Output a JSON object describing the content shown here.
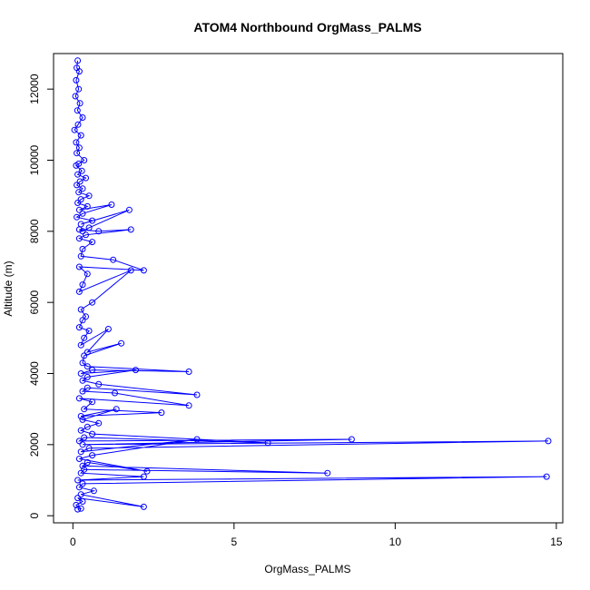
{
  "chart_data": {
    "type": "line",
    "title": "ATOM4 Northbound OrgMass_PALMS",
    "xlabel": "OrgMass_PALMS",
    "ylabel": "Altitude (m)",
    "xlim": [
      -0.6,
      15.2
    ],
    "ylim": [
      -200,
      13000
    ],
    "xticks": [
      0,
      5,
      10,
      15
    ],
    "yticks": [
      0,
      2000,
      4000,
      6000,
      8000,
      10000,
      12000
    ],
    "grid": false,
    "legend": "none",
    "markers": "open-circle",
    "color": "#0000ff",
    "series": [
      {
        "x": [
          0.15,
          0.12,
          0.2,
          0.1,
          0.18,
          0.08,
          0.22,
          0.14,
          0.3,
          0.16,
          0.05,
          0.25,
          0.1,
          0.2,
          0.12,
          0.35,
          0.18,
          0.1,
          0.28,
          0.15,
          0.4,
          0.22,
          0.12,
          0.3,
          0.18,
          0.5,
          0.25,
          0.15,
          0.45,
          0.2,
          1.2,
          0.3,
          0.12,
          0.6,
          0.25,
          1.75,
          0.5,
          0.3,
          0.2,
          0.8,
          1.8,
          0.4,
          0.2,
          0.6,
          0.3,
          0.25,
          1.25,
          2.2,
          0.2,
          0.45,
          0.3,
          0.2,
          1.8,
          0.6,
          0.25,
          0.4,
          0.3,
          0.2,
          0.5,
          0.35,
          0.25,
          1.1,
          0.45,
          1.5,
          0.35,
          0.3,
          0.45,
          3.6,
          0.6,
          0.25,
          1.95,
          0.45,
          0.3,
          0.8,
          3.85,
          0.45,
          0.3,
          1.3,
          3.6,
          0.2,
          0.6,
          0.35,
          2.75,
          0.25,
          1.35,
          0.3,
          0.8,
          0.45,
          0.25,
          0.6,
          6.05,
          0.35,
          0.2,
          8.65,
          0.3,
          14.75,
          0.5,
          0.25,
          3.85,
          0.6,
          0.2,
          2.3,
          0.45,
          0.3,
          7.9,
          0.35,
          0.25,
          2.2,
          0.15,
          14.7,
          0.3,
          0.2,
          0.65,
          0.25,
          2.2,
          0.15,
          0.3,
          0.1,
          0.25,
          0.15
        ],
        "y": [
          12800,
          12600,
          12500,
          12250,
          12000,
          11800,
          11600,
          11400,
          11200,
          11000,
          10850,
          10700,
          10500,
          10350,
          10200,
          10000,
          9900,
          9850,
          9700,
          9600,
          9500,
          9400,
          9300,
          9200,
          9100,
          9000,
          8900,
          8800,
          8700,
          8600,
          8750,
          8500,
          8400,
          8300,
          8200,
          8600,
          8100,
          8000,
          8050,
          8000,
          8050,
          7900,
          7800,
          7700,
          7500,
          7300,
          7200,
          6900,
          7000,
          6800,
          6500,
          6300,
          6900,
          6000,
          5800,
          5600,
          5500,
          5300,
          5200,
          5000,
          4800,
          5250,
          4600,
          4850,
          4500,
          4300,
          4200,
          4050,
          4100,
          4000,
          4100,
          3900,
          3800,
          3700,
          3400,
          3600,
          3500,
          3450,
          3100,
          3300,
          3200,
          3000,
          2900,
          2800,
          3000,
          2700,
          2600,
          2500,
          2400,
          2300,
          2050,
          2200,
          2100,
          2150,
          2000,
          2100,
          1900,
          1800,
          2150,
          1700,
          1600,
          1250,
          1500,
          1400,
          1200,
          1300,
          1200,
          1100,
          1000,
          1100,
          900,
          800,
          700,
          600,
          250,
          500,
          400,
          300,
          200,
          180
        ]
      }
    ]
  }
}
